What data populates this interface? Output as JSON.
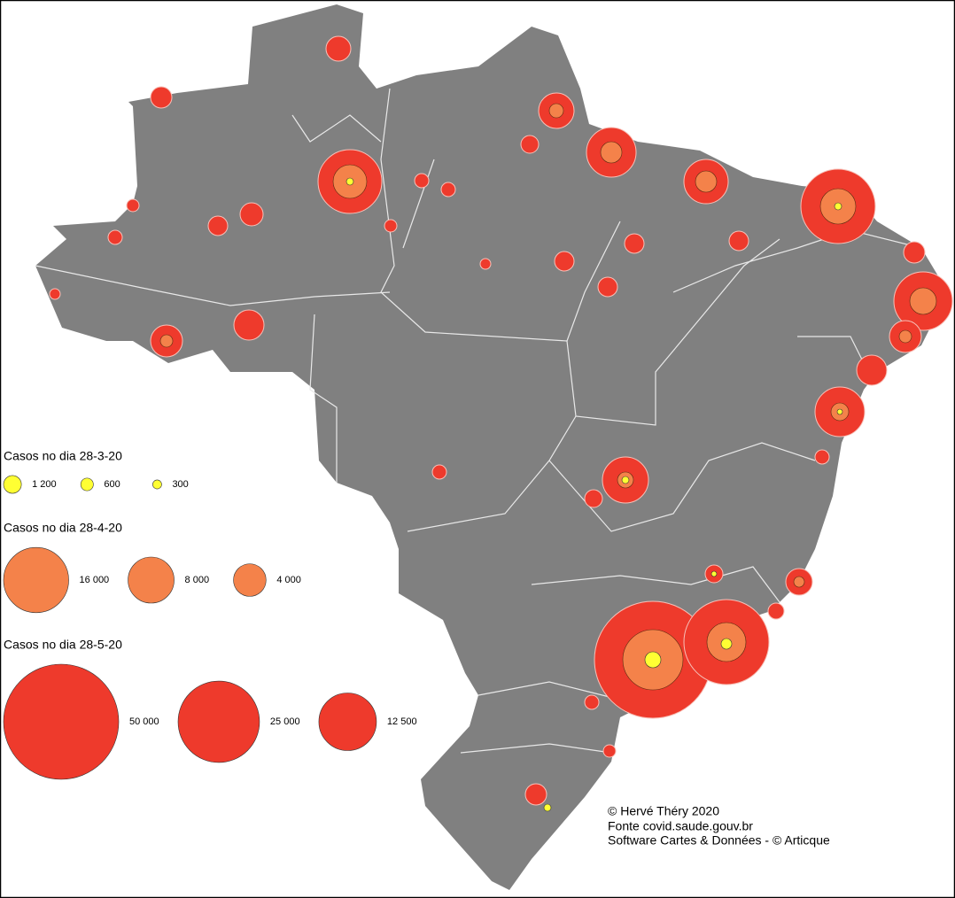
{
  "legends": [
    {
      "title": "Casos no dia 28-3-20",
      "color": "#ffff33",
      "items": [
        {
          "value": 1200,
          "label": "1 200"
        },
        600,
        300
      ]
    },
    {
      "title": "Casos no dia  28-4-20",
      "color": "#f4824a",
      "items": [
        {
          "value": 16000,
          "label": "16 000"
        },
        {
          "value": 8000,
          "label": "8 000"
        },
        {
          "value": 4000,
          "label": "4 000"
        }
      ]
    },
    {
      "title": "Casos no dia 28-5-20",
      "color": "#ee3a2c",
      "items": [
        {
          "value": 50000,
          "label": "50 000"
        },
        {
          "value": 25000,
          "label": "25 000"
        },
        {
          "value": 12500,
          "label": "12 500"
        }
      ]
    }
  ],
  "credits": [
    "© Hervé Théry 2020",
    "Fonte covid.saude.gouv.br",
    "Software Cartes & Données - © Articque"
  ]
}
